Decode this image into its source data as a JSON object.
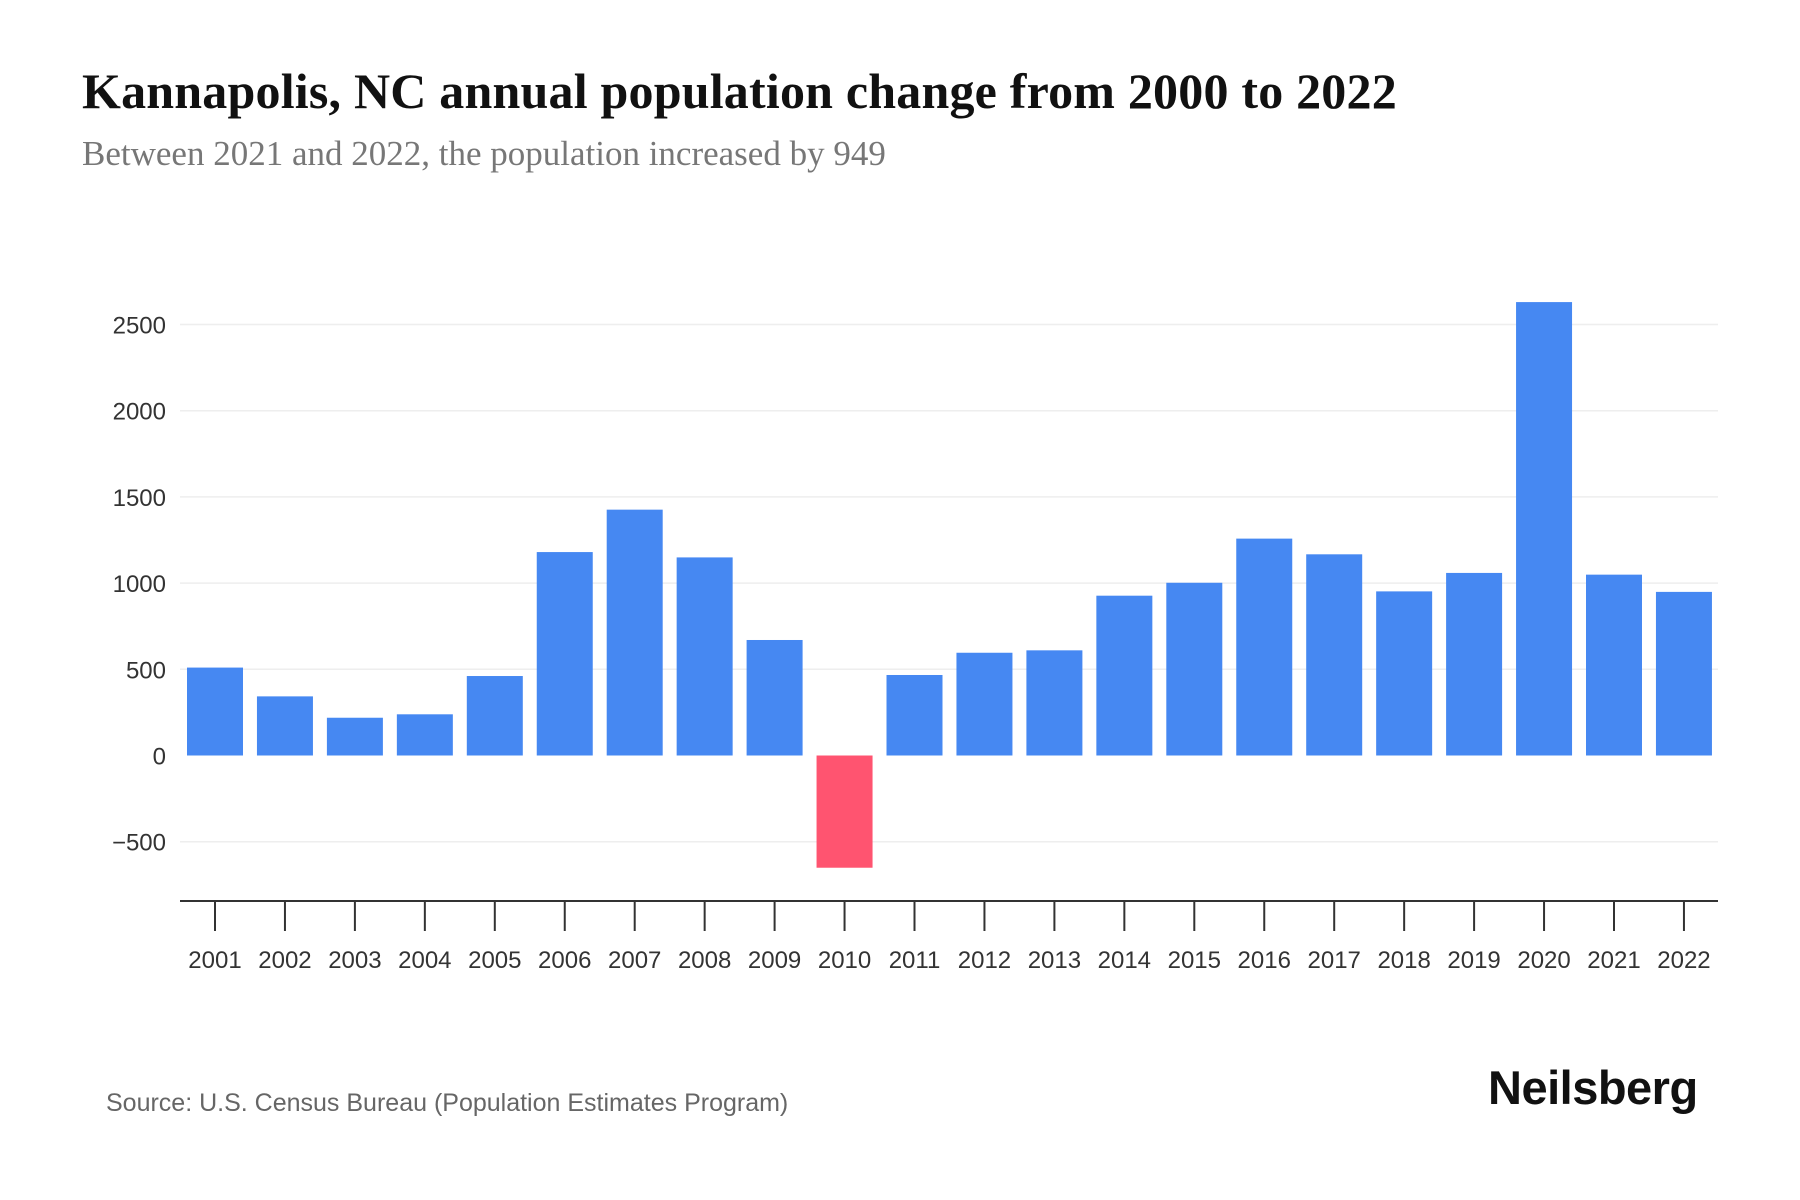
{
  "header": {
    "title": "Kannapolis, NC annual population change from 2000 to 2022",
    "subtitle": "Between 2021 and 2022, the population increased by 949"
  },
  "footer": {
    "source": "Source: U.S. Census Bureau (Population Estimates Program)",
    "logo": "Neilsberg"
  },
  "colors": {
    "positive": "#4688F2",
    "negative": "#FF5470",
    "gridline": "#EEEEEE",
    "axis": "#333333"
  },
  "chart_data": {
    "type": "bar",
    "title": "Kannapolis, NC annual population change from 2000 to 2022",
    "subtitle": "Between 2021 and 2022, the population increased by 949",
    "xlabel": "",
    "ylabel": "",
    "categories": [
      "2001",
      "2002",
      "2003",
      "2004",
      "2005",
      "2006",
      "2007",
      "2008",
      "2009",
      "2010",
      "2011",
      "2012",
      "2013",
      "2014",
      "2015",
      "2016",
      "2017",
      "2018",
      "2019",
      "2020",
      "2021",
      "2022"
    ],
    "values": [
      510,
      343,
      219,
      239,
      461,
      1180,
      1426,
      1149,
      670,
      -651,
      467,
      596,
      610,
      927,
      1002,
      1258,
      1167,
      952,
      1059,
      2630,
      1049,
      949
    ],
    "yticks": [
      -500,
      0,
      500,
      1000,
      1500,
      2000,
      2500
    ],
    "ytick_labels": [
      "−500",
      "0",
      "500",
      "1000",
      "1500",
      "2000",
      "2500"
    ],
    "ylim": [
      -830,
      2770
    ],
    "grid": true,
    "legend": "none",
    "source": "Source: U.S. Census Bureau (Population Estimates Program)"
  }
}
